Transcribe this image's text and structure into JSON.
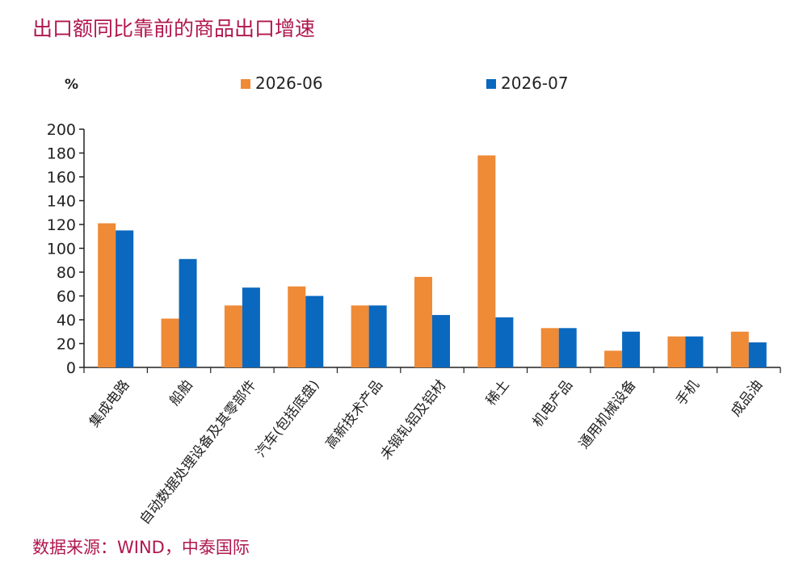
{
  "title": "出口额同比靠前的商品出口增速",
  "source": "数据来源：WIND，中泰国际",
  "colors": {
    "title": "#b0174e",
    "series_0": "#ef8a36",
    "series_1": "#0a68bf",
    "axis": "#222222"
  },
  "chart_data": {
    "type": "bar",
    "title": "出口额同比靠前的商品出口增速",
    "ylabel": "%",
    "xlabel": "",
    "ylim": [
      0,
      200
    ],
    "yticks": [
      0,
      20,
      40,
      60,
      80,
      100,
      120,
      140,
      160,
      180,
      200
    ],
    "grid": false,
    "legend_position": "top",
    "categories": [
      "集成电路",
      "船舶",
      "自动数据处理设备及其零部件",
      "汽车(包括底盘)",
      "高新技术产品",
      "未锻轧铝及铝材",
      "稀土",
      "机电产品",
      "通用机械设备",
      "手机",
      "成品油"
    ],
    "series": [
      {
        "name": "2026-06",
        "values": [
          121,
          41,
          52,
          68,
          52,
          76,
          178,
          33,
          14,
          26,
          30
        ]
      },
      {
        "name": "2026-07",
        "values": [
          115,
          91,
          67,
          60,
          52,
          44,
          42,
          33,
          30,
          26,
          21
        ]
      }
    ]
  }
}
